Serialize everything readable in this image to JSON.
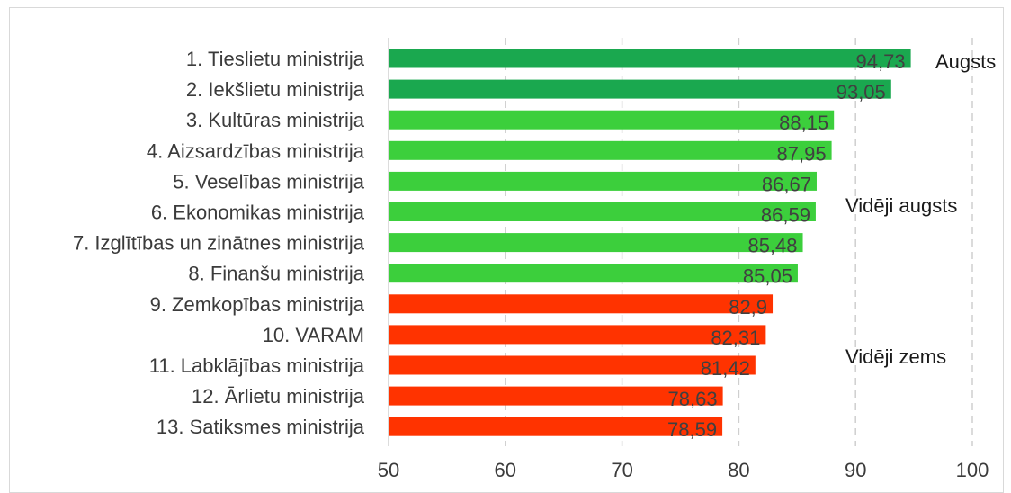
{
  "chart_data": {
    "type": "bar",
    "orientation": "horizontal",
    "categories": [
      "1. Tieslietu ministrija",
      "2. Iekšlietu ministrija",
      "3. Kultūras ministrija",
      "4. Aizsardzības ministrija",
      "5. Veselības ministrija",
      "6. Ekonomikas ministrija",
      "7. Izglītības un zinātnes ministrija",
      "8. Finanšu ministrija",
      "9. Zemkopības ministrija",
      "10. VARAM",
      "11. Labklājības ministrija",
      "12. Ārlietu ministrija",
      "13. Satiksmes ministrija"
    ],
    "values": [
      94.73,
      93.05,
      88.15,
      87.95,
      86.67,
      86.59,
      85.48,
      85.05,
      82.9,
      82.31,
      81.42,
      78.63,
      78.59
    ],
    "value_labels": [
      "94,73",
      "93,05",
      "88,15",
      "87,95",
      "86,67",
      "86,59",
      "85,48",
      "85,05",
      "82,9",
      "82,31",
      "81,42",
      "78,63",
      "78,59"
    ],
    "groups": [
      {
        "label": "Augsts",
        "from_index": 0,
        "to_index": 1,
        "color": "#1aa84f"
      },
      {
        "label": "Vidēji augsts",
        "from_index": 2,
        "to_index": 7,
        "color": "#3ccf3c"
      },
      {
        "label": "Vidēji zems",
        "from_index": 8,
        "to_index": 12,
        "color": "#ff3300"
      }
    ],
    "xlim": [
      50,
      100
    ],
    "xticks": [
      50,
      60,
      70,
      80,
      90,
      100
    ],
    "tick_labels": [
      "50",
      "60",
      "70",
      "80",
      "90",
      "100"
    ],
    "grid": "vertical dashed",
    "title": "",
    "xlabel": "",
    "ylabel": ""
  }
}
